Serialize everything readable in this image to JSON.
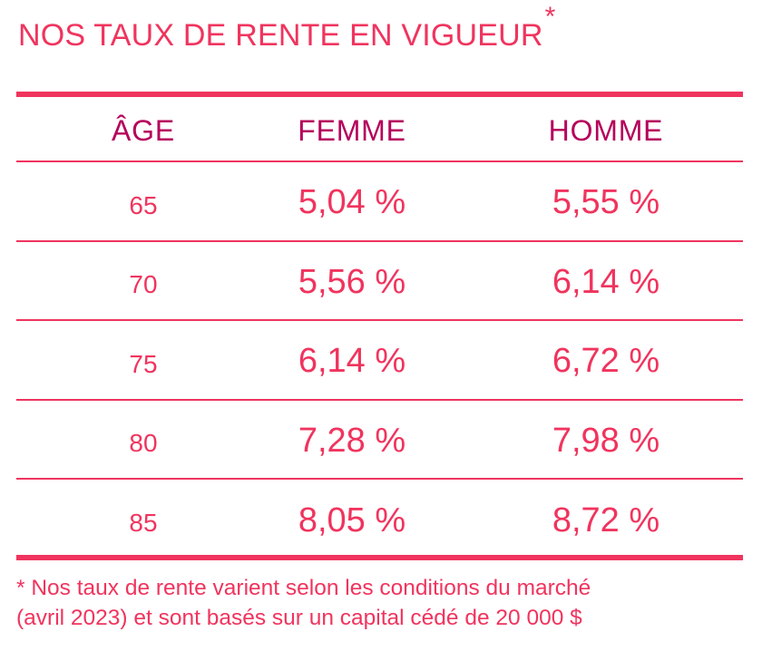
{
  "title": {
    "text": "NOS TAUX DE RENTE EN VIGUEUR",
    "marker": "*"
  },
  "colors": {
    "accent": "#f0345e",
    "header": "#b5005b",
    "background": "#ffffff"
  },
  "table": {
    "headers": {
      "age": "ÂGE",
      "femme": "FEMME",
      "homme": "HOMME"
    },
    "rows": [
      {
        "age": "65",
        "femme": "5,04 %",
        "homme": "5,55 %"
      },
      {
        "age": "70",
        "femme": "5,56 %",
        "homme": "6,14 %"
      },
      {
        "age": "75",
        "femme": "6,14 %",
        "homme": "6,72 %"
      },
      {
        "age": "80",
        "femme": "7,28 %",
        "homme": "7,98 %"
      },
      {
        "age": "85",
        "femme": "8,05 %",
        "homme": "8,72 %"
      }
    ]
  },
  "footnote": {
    "line1": "* Nos taux de rente varient selon les conditions du marché",
    "line2": "(avril 2023) et sont basés sur un capital cédé de 20 000 $"
  }
}
